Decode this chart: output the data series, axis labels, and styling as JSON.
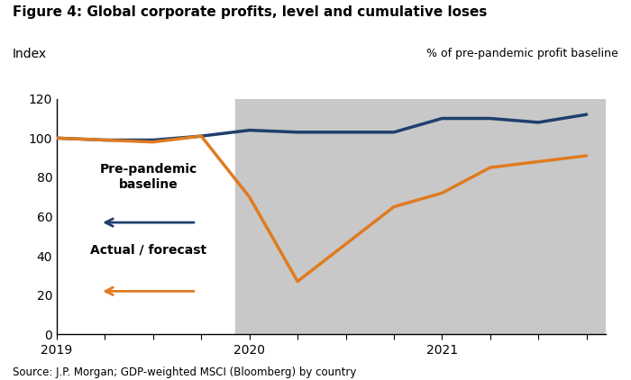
{
  "title": "Figure 4: Global corporate profits, level and cumulative loses",
  "ylabel_left": "Index",
  "ylabel_right": "% of pre-pandemic profit baseline",
  "source": "Source: J.P. Morgan; GDP-weighted MSCI (Bloomberg) by country",
  "ylim": [
    0,
    120
  ],
  "yticks": [
    0,
    20,
    40,
    60,
    80,
    100,
    120
  ],
  "shade_color": "#C8C8C8",
  "baseline_color": "#1F3F6E",
  "actual_color": "#E07B20",
  "background_color": "#FFFFFF",
  "x_values": [
    0,
    1,
    2,
    3,
    4,
    5,
    6,
    7,
    8,
    9,
    10,
    11
  ],
  "baseline_y": [
    100,
    99,
    99,
    101,
    104,
    103,
    103,
    103,
    110,
    110,
    108,
    112
  ],
  "actual_y": [
    100,
    99,
    98,
    101,
    70,
    27,
    46,
    65,
    72,
    85,
    88,
    91
  ],
  "shade_x_start": 3.7,
  "shade_x_end": 11.4,
  "xlim_left": 0,
  "xlim_right": 11.4,
  "xticks": [
    0,
    1,
    2,
    3,
    4,
    5,
    6,
    7,
    8,
    9,
    10,
    11
  ],
  "xtick_labels": [
    "2019",
    "",
    "",
    "",
    "2020",
    "",
    "",
    "",
    "2021",
    "",
    "",
    ""
  ],
  "legend_baseline_label": "Pre-pandemic\nbaseline",
  "legend_actual_label": "Actual / forecast"
}
